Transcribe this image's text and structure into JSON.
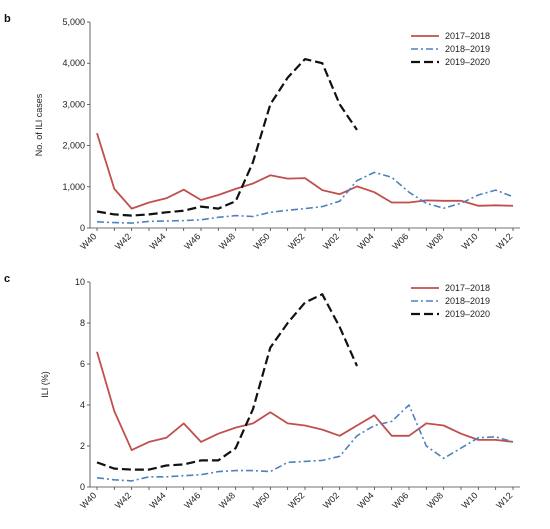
{
  "chart_data": [
    {
      "type": "line",
      "panel_label": "b",
      "ylabel": "No. of ILI cases",
      "ylim": [
        0,
        5000
      ],
      "yticks": [
        0,
        1000,
        2000,
        3000,
        4000,
        5000
      ],
      "ytick_labels": [
        "0",
        "1,000",
        "2,000",
        "3,000",
        "4,000",
        "5,000"
      ],
      "x": [
        "W40",
        "W41",
        "W42",
        "W43",
        "W44",
        "W45",
        "W46",
        "W47",
        "W48",
        "W49",
        "W50",
        "W51",
        "W52",
        "W01",
        "W02",
        "W03",
        "W04",
        "W05",
        "W06",
        "W07",
        "W08",
        "W09",
        "W10",
        "W11",
        "W12"
      ],
      "xtick_labels": [
        "W40",
        "W42",
        "W44",
        "W46",
        "W48",
        "W50",
        "W52",
        "W02",
        "W04",
        "W06",
        "W08",
        "W10",
        "W12"
      ],
      "legend_position": "top-right",
      "series": [
        {
          "name": "2017–2018",
          "color": "#c0504d",
          "dash": "solid",
          "values": [
            2300,
            950,
            470,
            620,
            720,
            930,
            680,
            800,
            950,
            1080,
            1280,
            1200,
            1210,
            920,
            820,
            1010,
            870,
            620,
            620,
            670,
            660,
            660,
            540,
            550,
            540
          ]
        },
        {
          "name": "2018–2019",
          "color": "#4f81bd",
          "dash": "dashdot",
          "values": [
            150,
            130,
            120,
            160,
            170,
            180,
            200,
            260,
            300,
            280,
            380,
            430,
            470,
            520,
            650,
            1150,
            1350,
            1230,
            870,
            600,
            480,
            600,
            800,
            920,
            760
          ]
        },
        {
          "name": "2019–2020",
          "color": "#111111",
          "dash": "dash",
          "values": [
            400,
            330,
            300,
            330,
            380,
            420,
            520,
            470,
            650,
            1600,
            3000,
            3650,
            4100,
            4000,
            3000,
            2380,
            null,
            null,
            null,
            null,
            null,
            null,
            null,
            null,
            null
          ]
        }
      ]
    },
    {
      "type": "line",
      "panel_label": "c",
      "ylabel": "ILI (%)",
      "ylim": [
        0,
        10
      ],
      "yticks": [
        0,
        2,
        4,
        6,
        8,
        10
      ],
      "ytick_labels": [
        "0",
        "2",
        "4",
        "6",
        "8",
        "10"
      ],
      "x": [
        "W40",
        "W41",
        "W42",
        "W43",
        "W44",
        "W45",
        "W46",
        "W47",
        "W48",
        "W49",
        "W50",
        "W51",
        "W52",
        "W01",
        "W02",
        "W03",
        "W04",
        "W05",
        "W06",
        "W07",
        "W08",
        "W09",
        "W10",
        "W11",
        "W12"
      ],
      "xtick_labels": [
        "W40",
        "W42",
        "W44",
        "W46",
        "W48",
        "W50",
        "W52",
        "W02",
        "W04",
        "W06",
        "W08",
        "W10",
        "W12"
      ],
      "legend_position": "top-right",
      "series": [
        {
          "name": "2017–2018",
          "color": "#c0504d",
          "dash": "solid",
          "values": [
            6.6,
            3.7,
            1.8,
            2.2,
            2.4,
            3.1,
            2.2,
            2.6,
            2.9,
            3.1,
            3.65,
            3.1,
            3.0,
            2.8,
            2.5,
            3.0,
            3.5,
            2.5,
            2.5,
            3.1,
            3.0,
            2.6,
            2.3,
            2.3,
            2.2
          ]
        },
        {
          "name": "2018–2019",
          "color": "#4f81bd",
          "dash": "dashdot",
          "values": [
            0.45,
            0.35,
            0.3,
            0.5,
            0.5,
            0.55,
            0.6,
            0.75,
            0.8,
            0.8,
            0.75,
            1.2,
            1.25,
            1.3,
            1.5,
            2.5,
            3.0,
            3.2,
            4.0,
            2.0,
            1.4,
            1.9,
            2.4,
            2.45,
            2.2
          ]
        },
        {
          "name": "2019–2020",
          "color": "#111111",
          "dash": "dash",
          "values": [
            1.2,
            0.9,
            0.85,
            0.85,
            1.05,
            1.1,
            1.3,
            1.3,
            1.9,
            3.8,
            6.8,
            8.0,
            9.0,
            9.4,
            7.8,
            5.9,
            null,
            null,
            null,
            null,
            null,
            null,
            null,
            null,
            null
          ]
        }
      ]
    }
  ]
}
